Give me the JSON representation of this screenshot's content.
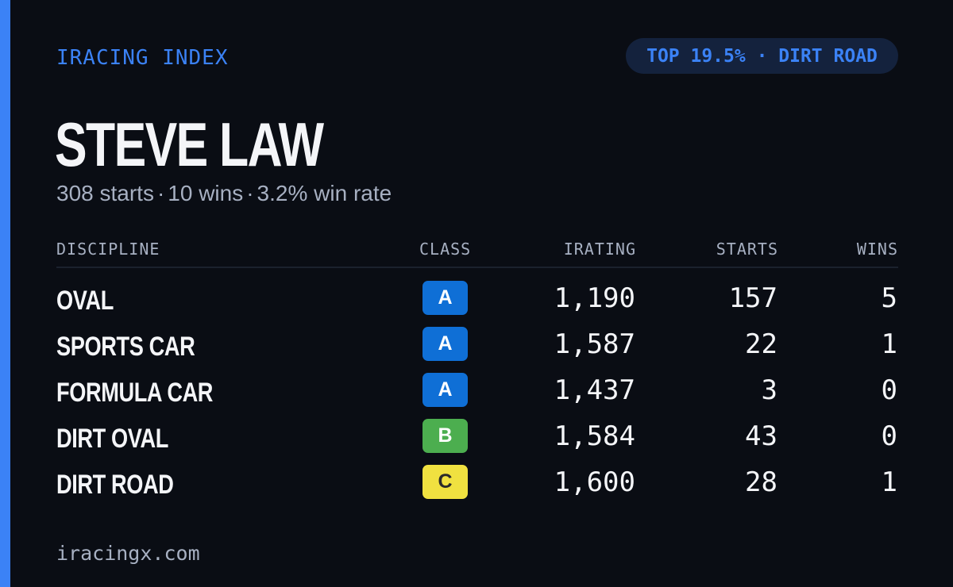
{
  "brand": "IRACING INDEX",
  "rank_badge": "TOP 19.5% · DIRT ROAD",
  "driver": {
    "name": "STEVE LAW",
    "starts": "308 starts",
    "wins": "10 wins",
    "win_rate": "3.2% win rate",
    "separator": "·"
  },
  "table": {
    "headers": {
      "discipline": "DISCIPLINE",
      "class": "CLASS",
      "irating": "IRATING",
      "starts": "STARTS",
      "wins": "WINS"
    },
    "rows": [
      {
        "discipline": "OVAL",
        "class": "A",
        "irating": "1,190",
        "starts": "157",
        "wins": "5"
      },
      {
        "discipline": "SPORTS CAR",
        "class": "A",
        "irating": "1,587",
        "starts": "22",
        "wins": "1"
      },
      {
        "discipline": "FORMULA CAR",
        "class": "A",
        "irating": "1,437",
        "starts": "3",
        "wins": "0"
      },
      {
        "discipline": "DIRT OVAL",
        "class": "B",
        "irating": "1,584",
        "starts": "43",
        "wins": "0"
      },
      {
        "discipline": "DIRT ROAD",
        "class": "C",
        "irating": "1,600",
        "starts": "28",
        "wins": "1"
      }
    ]
  },
  "class_colors": {
    "A": {
      "bg": "#0f6fd6",
      "fg": "#ffffff"
    },
    "B": {
      "bg": "#4cae4f",
      "fg": "#ffffff"
    },
    "C": {
      "bg": "#f0e140",
      "fg": "#2a2a2a"
    }
  },
  "footer": "iracingx.com"
}
